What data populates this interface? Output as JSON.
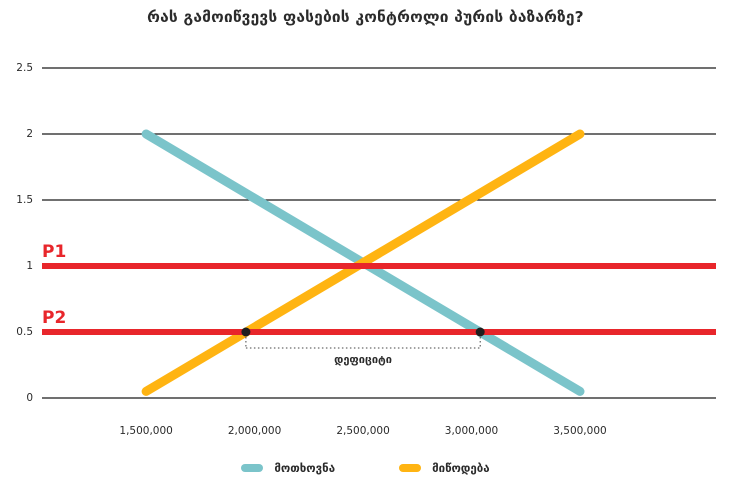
{
  "chart_data": {
    "type": "line",
    "title": "რას გამოიწვევს ფასების კონტროლი პურის ბაზარზე?",
    "xlabel": "",
    "ylabel": "",
    "xlim": [
      1020000,
      4127000
    ],
    "ylim": [
      0,
      2.5
    ],
    "grid": "horizontal",
    "legend_position": "bottom",
    "x_ticks": [
      1500000,
      2000000,
      2500000,
      3000000,
      3500000
    ],
    "x_tick_labels": [
      "1,500,000",
      "2,000,000",
      "2,500,000",
      "3,000,000",
      "3,500,000"
    ],
    "y_ticks": [
      0,
      0.5,
      1,
      1.5,
      2,
      2.5
    ],
    "y_tick_labels": [
      "0",
      "0.5",
      "1",
      "1.5",
      "2",
      "2.5"
    ],
    "series": [
      {
        "name": "მოთხოვნა",
        "color": "#7bc4ca",
        "points": [
          [
            1500000,
            2.0
          ],
          [
            3500000,
            0.05
          ]
        ]
      },
      {
        "name": "მიწოდება",
        "color": "#ffb412",
        "points": [
          [
            1500000,
            0.05
          ],
          [
            3500000,
            2.0
          ]
        ]
      }
    ],
    "price_lines": [
      {
        "label": "P1",
        "value": 1.0,
        "color": "#e8262b"
      },
      {
        "label": "P2",
        "value": 0.5,
        "color": "#e8262b"
      }
    ],
    "annotation": {
      "label": "დეფიციტი",
      "y": 0.5,
      "x_from": 1960000,
      "x_to": 3040000,
      "marker_color": "#1f1f1f"
    },
    "colors": {
      "grid": "#1a1a1a",
      "text": "#2b2b2b",
      "price_line": "#e8262b"
    }
  }
}
